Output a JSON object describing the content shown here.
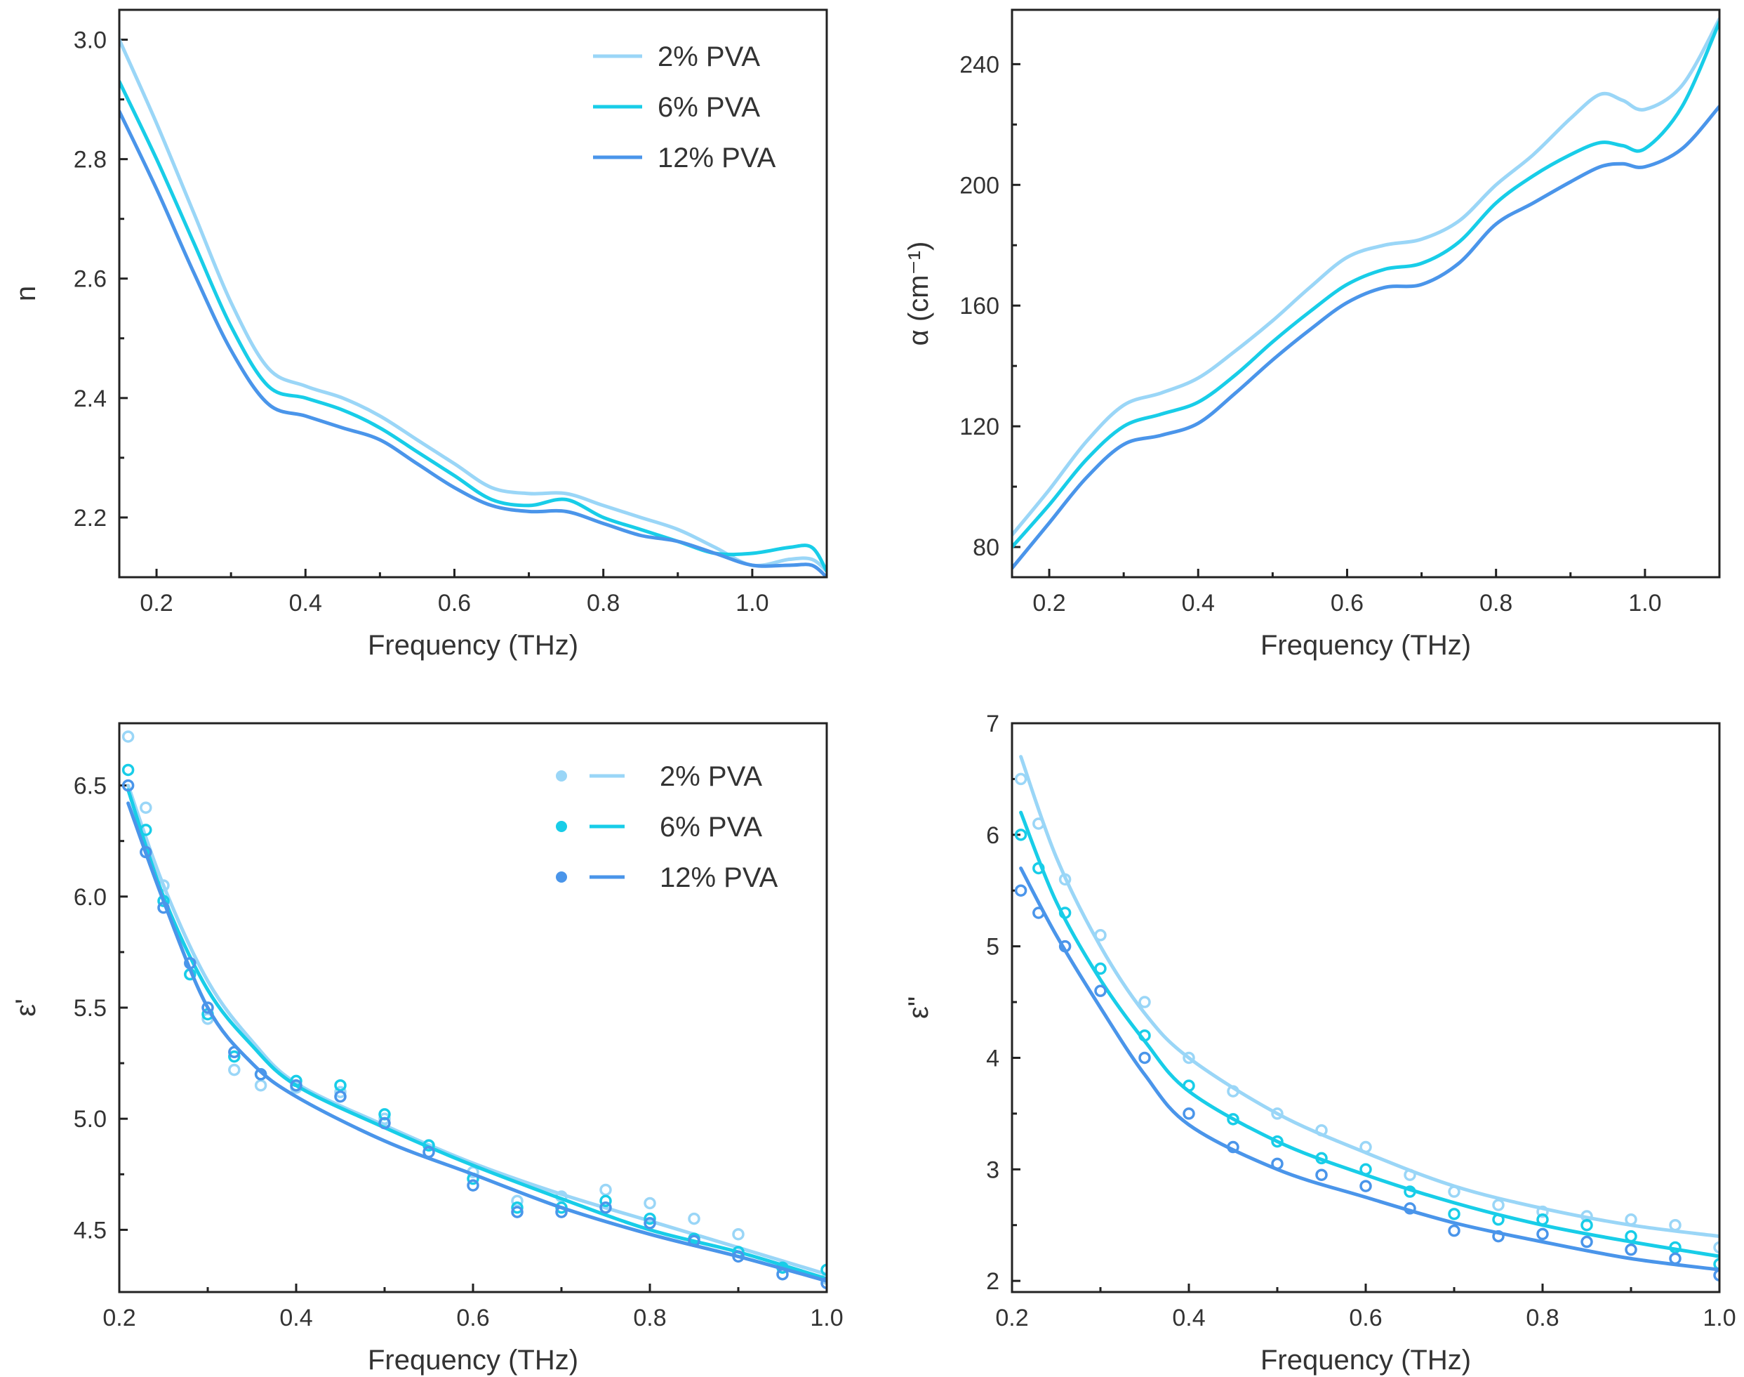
{
  "colors": {
    "pva2": "#9ad6f7",
    "pva6": "#18cde8",
    "pva12": "#4a95ea"
  },
  "chart_data": [
    {
      "id": "n",
      "type": "line",
      "title": "",
      "xlabel": "Frequency (THz)",
      "ylabel": "n",
      "xlim": [
        0.15,
        1.1
      ],
      "ylim": [
        2.1,
        3.05
      ],
      "xticks": [
        0.2,
        0.4,
        0.6,
        0.8,
        1.0
      ],
      "xtick_labels": [
        "0.2",
        "0.4",
        "0.6",
        "0.8",
        "1.0"
      ],
      "yticks": [
        2.2,
        2.4,
        2.6,
        2.8,
        3.0
      ],
      "ytick_labels": [
        "2.2",
        "2.4",
        "2.6",
        "2.8",
        "3.0"
      ],
      "legend": {
        "position": "top-right",
        "entries": [
          "2% PVA",
          "6% PVA",
          "12% PVA"
        ]
      },
      "series": [
        {
          "name": "2% PVA",
          "color_key": "pva2",
          "x": [
            0.15,
            0.2,
            0.25,
            0.3,
            0.35,
            0.4,
            0.45,
            0.5,
            0.55,
            0.6,
            0.65,
            0.7,
            0.75,
            0.8,
            0.85,
            0.9,
            0.95,
            1.0,
            1.05,
            1.08,
            1.1
          ],
          "y": [
            3.0,
            2.86,
            2.71,
            2.56,
            2.45,
            2.42,
            2.4,
            2.37,
            2.33,
            2.29,
            2.25,
            2.24,
            2.24,
            2.22,
            2.2,
            2.18,
            2.15,
            2.12,
            2.13,
            2.13,
            2.11
          ]
        },
        {
          "name": "6% PVA",
          "color_key": "pva6",
          "x": [
            0.15,
            0.2,
            0.25,
            0.3,
            0.35,
            0.4,
            0.45,
            0.5,
            0.55,
            0.6,
            0.65,
            0.7,
            0.75,
            0.8,
            0.85,
            0.9,
            0.95,
            1.0,
            1.05,
            1.08,
            1.1
          ],
          "y": [
            2.93,
            2.8,
            2.66,
            2.52,
            2.42,
            2.4,
            2.38,
            2.35,
            2.31,
            2.27,
            2.23,
            2.22,
            2.23,
            2.2,
            2.18,
            2.16,
            2.14,
            2.14,
            2.15,
            2.15,
            2.11
          ]
        },
        {
          "name": "12% PVA",
          "color_key": "pva12",
          "x": [
            0.15,
            0.2,
            0.25,
            0.3,
            0.35,
            0.4,
            0.45,
            0.5,
            0.55,
            0.6,
            0.65,
            0.7,
            0.75,
            0.8,
            0.85,
            0.9,
            0.95,
            1.0,
            1.05,
            1.08,
            1.1
          ],
          "y": [
            2.88,
            2.75,
            2.61,
            2.48,
            2.39,
            2.37,
            2.35,
            2.33,
            2.29,
            2.25,
            2.22,
            2.21,
            2.21,
            2.19,
            2.17,
            2.16,
            2.14,
            2.12,
            2.12,
            2.12,
            2.1
          ]
        }
      ]
    },
    {
      "id": "alpha",
      "type": "line",
      "title": "",
      "xlabel": "Frequency (THz)",
      "ylabel": "α (cm⁻¹)",
      "xlim": [
        0.15,
        1.1
      ],
      "ylim": [
        70,
        258
      ],
      "xticks": [
        0.2,
        0.4,
        0.6,
        0.8,
        1.0
      ],
      "xtick_labels": [
        "0.2",
        "0.4",
        "0.6",
        "0.8",
        "1.0"
      ],
      "yticks": [
        80,
        120,
        160,
        200,
        240
      ],
      "ytick_labels": [
        "80",
        "120",
        "160",
        "200",
        "240"
      ],
      "legend": null,
      "series": [
        {
          "name": "2% PVA",
          "color_key": "pva2",
          "x": [
            0.15,
            0.2,
            0.25,
            0.3,
            0.35,
            0.4,
            0.45,
            0.5,
            0.55,
            0.6,
            0.65,
            0.7,
            0.75,
            0.8,
            0.85,
            0.9,
            0.94,
            0.97,
            1.0,
            1.05,
            1.1
          ],
          "y": [
            84,
            99,
            115,
            127,
            131,
            136,
            145,
            155,
            166,
            176,
            180,
            182,
            188,
            200,
            210,
            222,
            230,
            228,
            225,
            233,
            255
          ]
        },
        {
          "name": "6% PVA",
          "color_key": "pva6",
          "x": [
            0.15,
            0.2,
            0.25,
            0.3,
            0.35,
            0.4,
            0.45,
            0.5,
            0.55,
            0.6,
            0.65,
            0.7,
            0.75,
            0.8,
            0.85,
            0.9,
            0.94,
            0.97,
            1.0,
            1.05,
            1.1
          ],
          "y": [
            80,
            94,
            109,
            120,
            124,
            128,
            137,
            148,
            158,
            167,
            172,
            174,
            181,
            194,
            203,
            210,
            214,
            213,
            212,
            226,
            254
          ]
        },
        {
          "name": "12% PVA",
          "color_key": "pva12",
          "x": [
            0.15,
            0.2,
            0.25,
            0.3,
            0.35,
            0.4,
            0.45,
            0.5,
            0.55,
            0.6,
            0.65,
            0.7,
            0.75,
            0.8,
            0.85,
            0.9,
            0.94,
            0.97,
            1.0,
            1.05,
            1.1
          ],
          "y": [
            73,
            88,
            103,
            114,
            117,
            121,
            131,
            142,
            152,
            161,
            166,
            167,
            174,
            187,
            194,
            201,
            206,
            207,
            206,
            212,
            226
          ]
        }
      ]
    },
    {
      "id": "eps-real",
      "type": "line+scatter",
      "title": "",
      "xlabel": "Frequency (THz)",
      "ylabel": "ε'",
      "xlim": [
        0.2,
        1.0
      ],
      "ylim": [
        4.22,
        6.78
      ],
      "xticks": [
        0.2,
        0.4,
        0.6,
        0.8,
        1.0
      ],
      "xtick_labels": [
        "0.2",
        "0.4",
        "0.6",
        "0.8",
        "1.0"
      ],
      "yticks": [
        4.5,
        5.0,
        5.5,
        6.0,
        6.5
      ],
      "ytick_labels": [
        "4.5",
        "5.0",
        "5.5",
        "6.0",
        "6.5"
      ],
      "legend": {
        "position": "top-right",
        "entries": [
          "2% PVA",
          "6% PVA",
          "12% PVA"
        ]
      },
      "series": [
        {
          "name": "2% PVA",
          "color_key": "pva2",
          "points_x": [
            0.21,
            0.23,
            0.25,
            0.28,
            0.3,
            0.33,
            0.36,
            0.4,
            0.45,
            0.5,
            0.55,
            0.6,
            0.65,
            0.7,
            0.75,
            0.8,
            0.85,
            0.9,
            0.95,
            1.0
          ],
          "points_y": [
            6.72,
            6.4,
            6.05,
            5.65,
            5.45,
            5.22,
            5.15,
            5.14,
            5.12,
            5.0,
            4.88,
            4.76,
            4.63,
            4.65,
            4.68,
            4.62,
            4.55,
            4.48,
            4.33,
            4.28
          ],
          "fit_x": [
            0.21,
            0.25,
            0.3,
            0.35,
            0.4,
            0.5,
            0.6,
            0.7,
            0.8,
            0.9,
            1.0
          ],
          "fit_y": [
            6.5,
            6.05,
            5.62,
            5.35,
            5.16,
            4.97,
            4.8,
            4.66,
            4.54,
            4.42,
            4.3
          ]
        },
        {
          "name": "6% PVA",
          "color_key": "pva6",
          "points_x": [
            0.21,
            0.23,
            0.25,
            0.28,
            0.3,
            0.33,
            0.36,
            0.4,
            0.45,
            0.5,
            0.55,
            0.6,
            0.65,
            0.7,
            0.75,
            0.8,
            0.85,
            0.9,
            0.95,
            1.0
          ],
          "points_y": [
            6.57,
            6.3,
            5.98,
            5.65,
            5.47,
            5.28,
            5.2,
            5.17,
            5.15,
            5.02,
            4.88,
            4.73,
            4.6,
            4.6,
            4.63,
            4.55,
            4.46,
            4.4,
            4.33,
            4.32
          ],
          "fit_x": [
            0.21,
            0.25,
            0.3,
            0.35,
            0.4,
            0.5,
            0.6,
            0.7,
            0.8,
            0.9,
            1.0
          ],
          "fit_y": [
            6.48,
            6.0,
            5.58,
            5.33,
            5.15,
            4.96,
            4.79,
            4.64,
            4.5,
            4.4,
            4.28
          ]
        },
        {
          "name": "12% PVA",
          "color_key": "pva12",
          "points_x": [
            0.21,
            0.23,
            0.25,
            0.28,
            0.3,
            0.33,
            0.36,
            0.4,
            0.45,
            0.5,
            0.55,
            0.6,
            0.65,
            0.7,
            0.75,
            0.8,
            0.85,
            0.9,
            0.95,
            1.0
          ],
          "points_y": [
            6.5,
            6.2,
            5.95,
            5.7,
            5.5,
            5.3,
            5.2,
            5.15,
            5.1,
            4.98,
            4.85,
            4.7,
            4.58,
            4.58,
            4.6,
            4.53,
            4.45,
            4.38,
            4.3,
            4.26
          ],
          "fit_x": [
            0.21,
            0.25,
            0.3,
            0.35,
            0.4,
            0.5,
            0.6,
            0.7,
            0.8,
            0.9,
            1.0
          ],
          "fit_y": [
            6.42,
            5.98,
            5.5,
            5.25,
            5.1,
            4.9,
            4.75,
            4.6,
            4.48,
            4.38,
            4.27
          ]
        }
      ]
    },
    {
      "id": "eps-imag",
      "type": "line+scatter",
      "title": "",
      "xlabel": "Frequency (THz)",
      "ylabel": "ε\"",
      "xlim": [
        0.2,
        1.0
      ],
      "ylim": [
        1.9,
        7.0
      ],
      "xticks": [
        0.2,
        0.4,
        0.6,
        0.8,
        1.0
      ],
      "xtick_labels": [
        "0.2",
        "0.4",
        "0.6",
        "0.8",
        "1.0"
      ],
      "yticks": [
        2,
        3,
        4,
        5,
        6,
        7
      ],
      "ytick_labels": [
        "2",
        "3",
        "4",
        "5",
        "6",
        "7"
      ],
      "legend": null,
      "series": [
        {
          "name": "2% PVA",
          "color_key": "pva2",
          "points_x": [
            0.21,
            0.23,
            0.26,
            0.3,
            0.35,
            0.4,
            0.45,
            0.5,
            0.55,
            0.6,
            0.65,
            0.7,
            0.75,
            0.8,
            0.85,
            0.9,
            0.95,
            1.0
          ],
          "points_y": [
            6.5,
            6.1,
            5.6,
            5.1,
            4.5,
            4.0,
            3.7,
            3.5,
            3.35,
            3.2,
            2.95,
            2.8,
            2.68,
            2.62,
            2.58,
            2.55,
            2.5,
            2.3
          ],
          "fit_x": [
            0.21,
            0.25,
            0.3,
            0.35,
            0.4,
            0.5,
            0.6,
            0.7,
            0.8,
            0.9,
            1.0
          ],
          "fit_y": [
            6.7,
            5.8,
            5.0,
            4.4,
            4.0,
            3.5,
            3.15,
            2.85,
            2.65,
            2.5,
            2.4
          ]
        },
        {
          "name": "6% PVA",
          "color_key": "pva6",
          "points_x": [
            0.21,
            0.23,
            0.26,
            0.3,
            0.35,
            0.4,
            0.45,
            0.5,
            0.55,
            0.6,
            0.65,
            0.7,
            0.75,
            0.8,
            0.85,
            0.9,
            0.95,
            1.0
          ],
          "points_y": [
            6.0,
            5.7,
            5.3,
            4.8,
            4.2,
            3.75,
            3.45,
            3.25,
            3.1,
            3.0,
            2.8,
            2.6,
            2.55,
            2.55,
            2.5,
            2.4,
            2.3,
            2.15
          ],
          "fit_x": [
            0.21,
            0.25,
            0.3,
            0.35,
            0.4,
            0.5,
            0.6,
            0.7,
            0.8,
            0.9,
            1.0
          ],
          "fit_y": [
            6.2,
            5.4,
            4.7,
            4.15,
            3.7,
            3.25,
            2.95,
            2.7,
            2.5,
            2.35,
            2.22
          ]
        },
        {
          "name": "12% PVA",
          "color_key": "pva12",
          "points_x": [
            0.21,
            0.23,
            0.26,
            0.3,
            0.35,
            0.4,
            0.45,
            0.5,
            0.55,
            0.6,
            0.65,
            0.7,
            0.75,
            0.8,
            0.85,
            0.9,
            0.95,
            1.0
          ],
          "points_y": [
            5.5,
            5.3,
            5.0,
            4.6,
            4.0,
            3.5,
            3.2,
            3.05,
            2.95,
            2.85,
            2.65,
            2.45,
            2.4,
            2.42,
            2.35,
            2.28,
            2.2,
            2.05
          ],
          "fit_x": [
            0.21,
            0.25,
            0.3,
            0.35,
            0.4,
            0.5,
            0.6,
            0.7,
            0.8,
            0.9,
            1.0
          ],
          "fit_y": [
            5.7,
            5.1,
            4.45,
            3.85,
            3.4,
            3.0,
            2.75,
            2.52,
            2.35,
            2.2,
            2.1
          ]
        }
      ]
    }
  ]
}
